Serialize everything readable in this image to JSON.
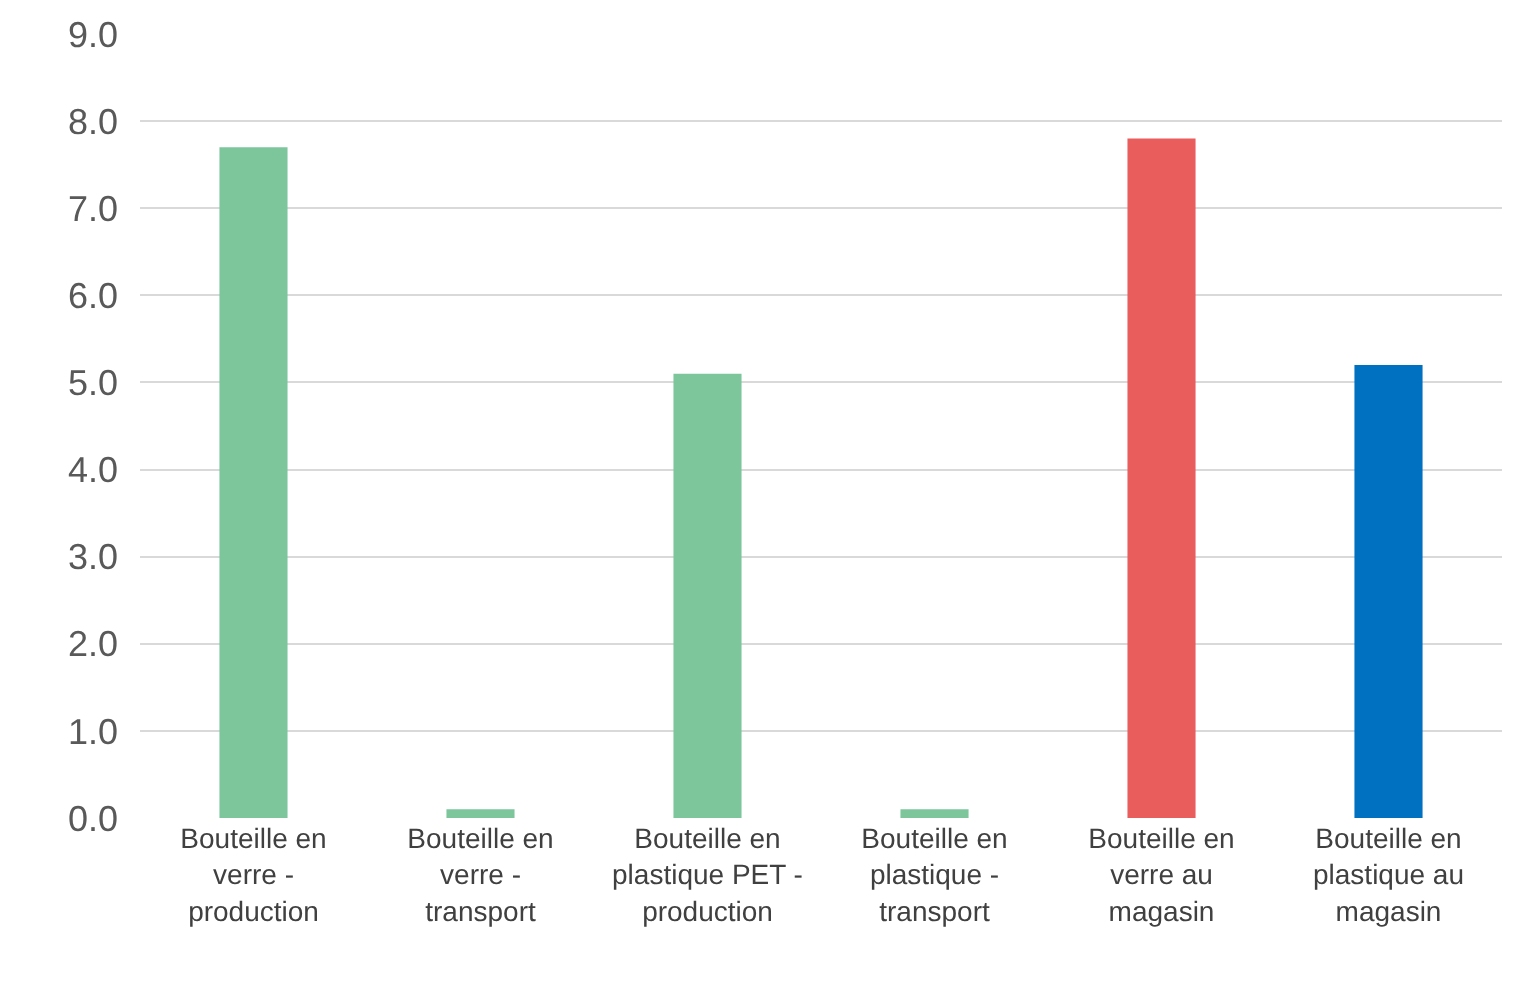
{
  "chart_data": {
    "type": "bar",
    "categories": [
      "Bouteille en verre - production",
      "Bouteille en verre - transport",
      "Bouteille en plastique PET - production",
      "Bouteille en plastique - transport",
      "Bouteille en verre au magasin",
      "Bouteille en plastique au magasin"
    ],
    "values": [
      7.7,
      0.1,
      5.1,
      0.1,
      7.8,
      5.2
    ],
    "colors": [
      "#7dc69c",
      "#7dc69c",
      "#7dc69c",
      "#7dc69c",
      "#e95d5d",
      "#0070c0"
    ],
    "ylim": [
      0,
      9
    ],
    "yticks": [
      {
        "value": 0,
        "label": "0.0"
      },
      {
        "value": 1,
        "label": "1.0"
      },
      {
        "value": 2,
        "label": "2.0"
      },
      {
        "value": 3,
        "label": "3.0"
      },
      {
        "value": 4,
        "label": "4.0"
      },
      {
        "value": 5,
        "label": "5.0"
      },
      {
        "value": 6,
        "label": "6.0"
      },
      {
        "value": 7,
        "label": "7.0"
      },
      {
        "value": 8,
        "label": "8.0"
      },
      {
        "value": 9,
        "label": "9.0"
      }
    ],
    "grid": "y",
    "legend": false
  }
}
